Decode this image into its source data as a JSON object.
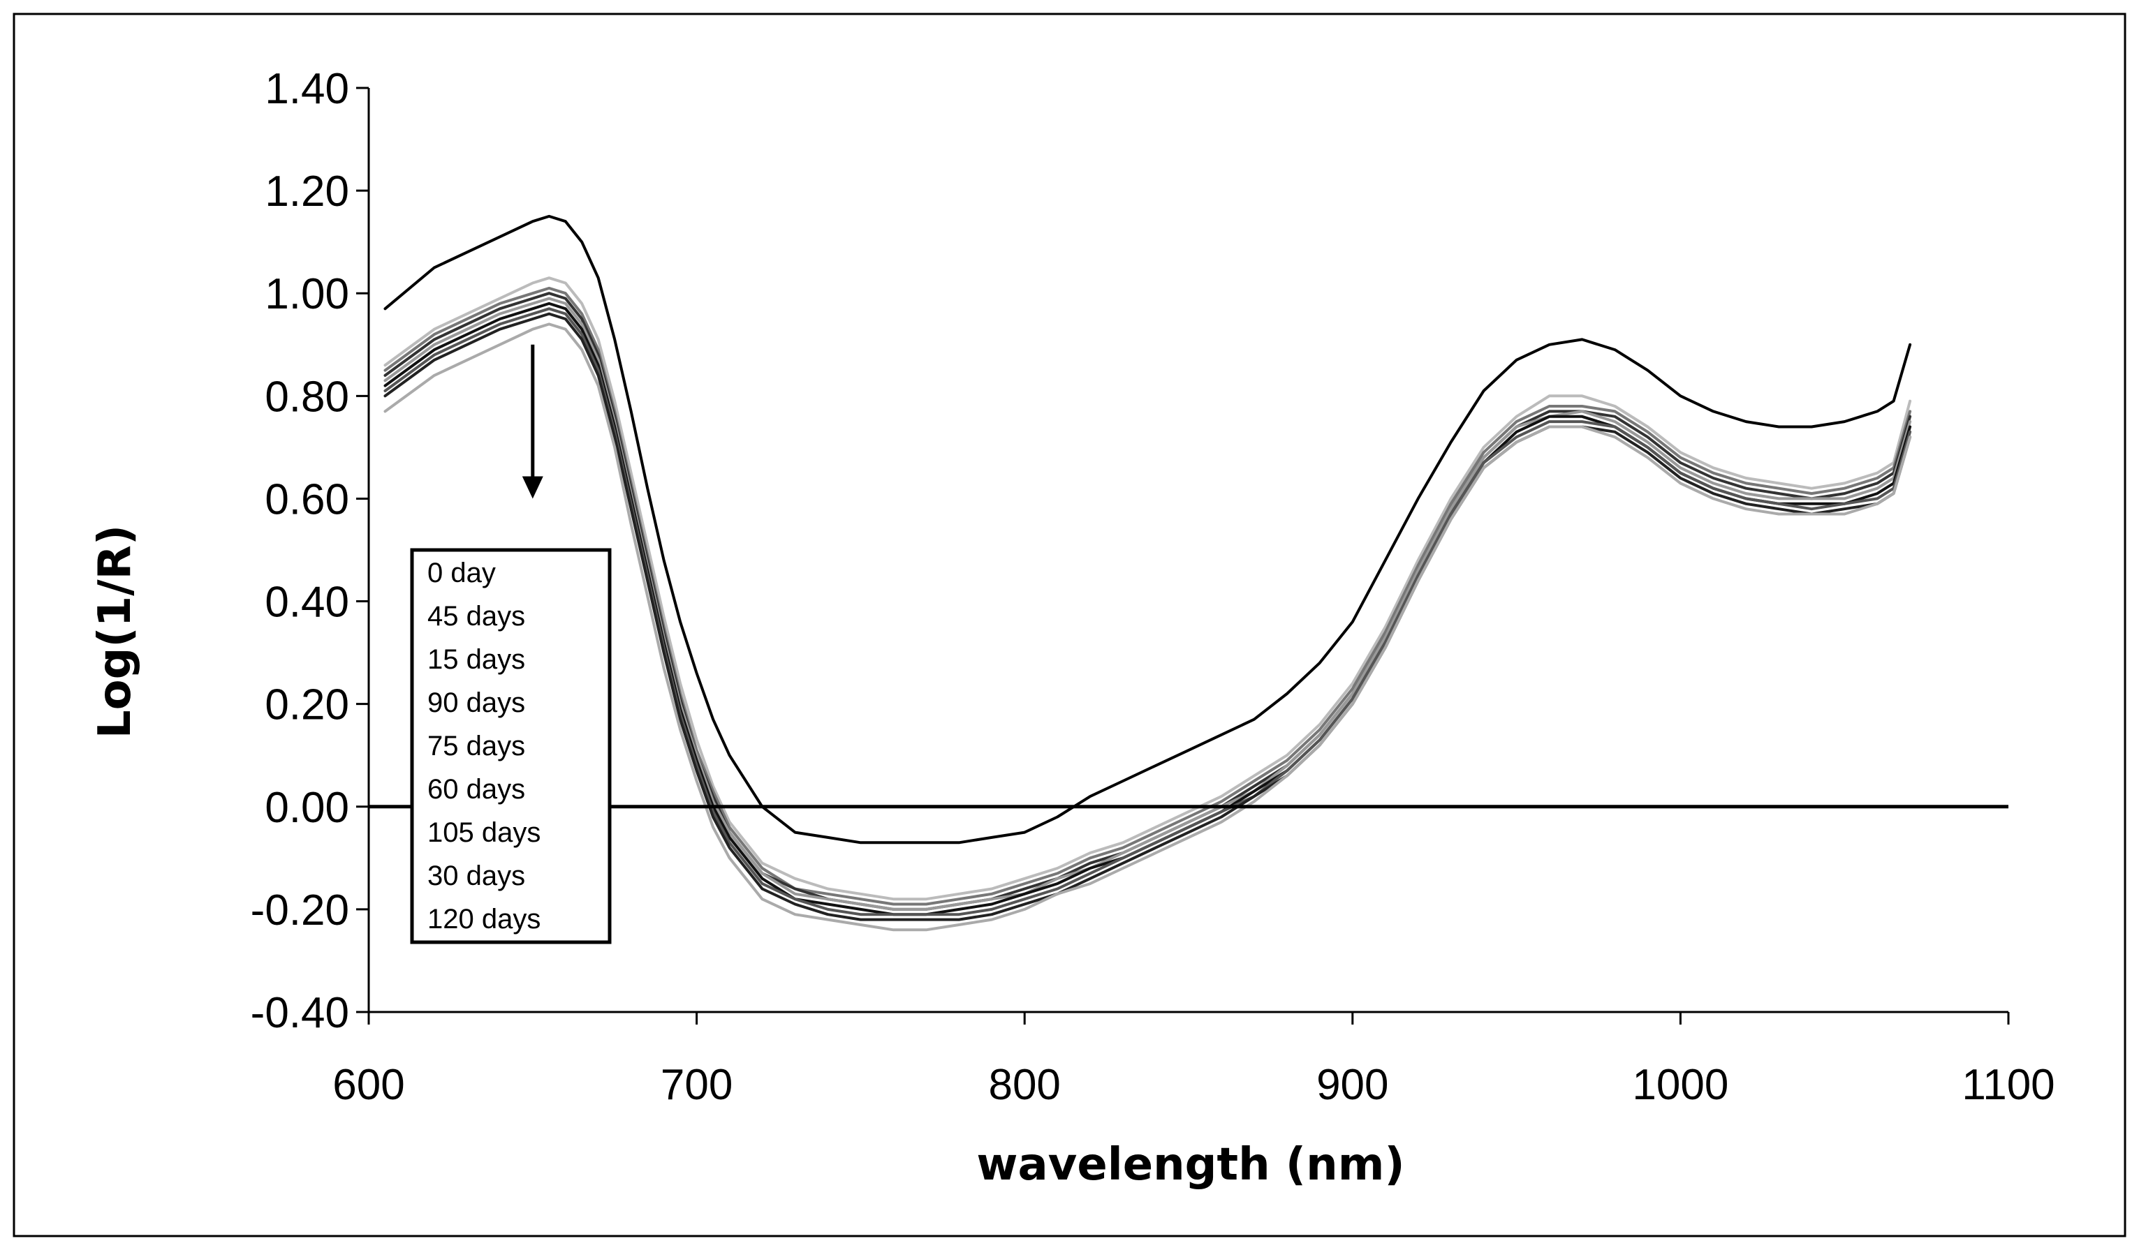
{
  "chart_data": {
    "type": "line",
    "title": "",
    "xlabel": "wavelength (nm)",
    "ylabel": "Log(1/R)",
    "xlim": [
      600,
      1100
    ],
    "ylim": [
      -0.4,
      1.4
    ],
    "xticks": [
      600,
      700,
      800,
      900,
      1000,
      1100
    ],
    "xtick_labels": [
      "600",
      "700",
      "800",
      "900",
      "1000",
      "1100"
    ],
    "yticks": [
      -0.4,
      -0.2,
      0.0,
      0.2,
      0.4,
      0.6,
      0.8,
      1.0,
      1.2,
      1.4
    ],
    "ytick_labels": [
      "-0.40",
      "-0.20",
      "0.00",
      "0.20",
      "0.40",
      "0.60",
      "0.80",
      "1.00",
      "1.20",
      "1.40"
    ],
    "grid": false,
    "zero_line": 0.0,
    "legend_placement": "left",
    "annotation": "arrow pointing down at 650 nm, from 0.90 to 0.60",
    "x": [
      605,
      620,
      640,
      650,
      655,
      660,
      665,
      670,
      675,
      680,
      685,
      690,
      695,
      700,
      705,
      710,
      720,
      730,
      740,
      750,
      760,
      770,
      780,
      790,
      800,
      810,
      820,
      830,
      840,
      850,
      860,
      870,
      880,
      890,
      900,
      910,
      920,
      930,
      940,
      950,
      960,
      970,
      980,
      990,
      1000,
      1010,
      1020,
      1030,
      1040,
      1050,
      1060,
      1065,
      1070
    ],
    "series": [
      {
        "name": "0 day",
        "color": "#000000",
        "width": 4,
        "values": [
          0.97,
          1.05,
          1.11,
          1.14,
          1.15,
          1.14,
          1.1,
          1.03,
          0.91,
          0.77,
          0.62,
          0.48,
          0.36,
          0.26,
          0.17,
          0.1,
          0.0,
          -0.05,
          -0.06,
          -0.07,
          -0.07,
          -0.07,
          -0.07,
          -0.06,
          -0.05,
          -0.02,
          0.02,
          0.05,
          0.08,
          0.11,
          0.14,
          0.17,
          0.22,
          0.28,
          0.36,
          0.48,
          0.6,
          0.71,
          0.81,
          0.87,
          0.9,
          0.91,
          0.89,
          0.85,
          0.8,
          0.77,
          0.75,
          0.74,
          0.74,
          0.75,
          0.77,
          0.79,
          0.9
        ]
      },
      {
        "name": "45 days",
        "color": "#bbbbbb",
        "width": 4,
        "values": [
          0.86,
          0.93,
          0.99,
          1.02,
          1.03,
          1.02,
          0.98,
          0.91,
          0.79,
          0.65,
          0.51,
          0.37,
          0.24,
          0.13,
          0.04,
          -0.03,
          -0.11,
          -0.14,
          -0.16,
          -0.17,
          -0.18,
          -0.18,
          -0.17,
          -0.16,
          -0.14,
          -0.12,
          -0.09,
          -0.07,
          -0.04,
          -0.01,
          0.02,
          0.06,
          0.1,
          0.16,
          0.24,
          0.35,
          0.48,
          0.6,
          0.7,
          0.76,
          0.8,
          0.8,
          0.78,
          0.74,
          0.69,
          0.66,
          0.64,
          0.63,
          0.62,
          0.63,
          0.65,
          0.67,
          0.79
        ]
      },
      {
        "name": "15 days",
        "color": "#777777",
        "width": 4,
        "values": [
          0.85,
          0.92,
          0.98,
          1.0,
          1.01,
          1.0,
          0.96,
          0.89,
          0.77,
          0.63,
          0.49,
          0.35,
          0.22,
          0.11,
          0.03,
          -0.04,
          -0.12,
          -0.16,
          -0.17,
          -0.18,
          -0.19,
          -0.19,
          -0.18,
          -0.17,
          -0.15,
          -0.13,
          -0.1,
          -0.08,
          -0.05,
          -0.02,
          0.01,
          0.05,
          0.09,
          0.15,
          0.23,
          0.34,
          0.47,
          0.59,
          0.69,
          0.75,
          0.78,
          0.78,
          0.77,
          0.73,
          0.68,
          0.65,
          0.63,
          0.62,
          0.61,
          0.62,
          0.64,
          0.66,
          0.77
        ]
      },
      {
        "name": "90 days",
        "color": "#333333",
        "width": 4,
        "values": [
          0.84,
          0.91,
          0.97,
          0.99,
          1.0,
          0.99,
          0.95,
          0.88,
          0.76,
          0.62,
          0.48,
          0.34,
          0.21,
          0.1,
          0.02,
          -0.05,
          -0.13,
          -0.16,
          -0.18,
          -0.19,
          -0.2,
          -0.2,
          -0.19,
          -0.18,
          -0.16,
          -0.14,
          -0.11,
          -0.09,
          -0.06,
          -0.03,
          0.0,
          0.04,
          0.08,
          0.14,
          0.22,
          0.33,
          0.46,
          0.58,
          0.68,
          0.74,
          0.77,
          0.77,
          0.76,
          0.72,
          0.67,
          0.64,
          0.62,
          0.61,
          0.6,
          0.61,
          0.63,
          0.65,
          0.76
        ]
      },
      {
        "name": "75 days",
        "color": "#999999",
        "width": 4,
        "values": [
          0.83,
          0.9,
          0.96,
          0.98,
          0.99,
          0.98,
          0.94,
          0.87,
          0.75,
          0.61,
          0.47,
          0.33,
          0.2,
          0.1,
          0.01,
          -0.05,
          -0.13,
          -0.17,
          -0.18,
          -0.19,
          -0.2,
          -0.2,
          -0.19,
          -0.18,
          -0.17,
          -0.14,
          -0.12,
          -0.09,
          -0.06,
          -0.03,
          0.0,
          0.03,
          0.08,
          0.14,
          0.22,
          0.33,
          0.46,
          0.58,
          0.68,
          0.74,
          0.76,
          0.77,
          0.75,
          0.71,
          0.66,
          0.63,
          0.61,
          0.6,
          0.6,
          0.6,
          0.62,
          0.64,
          0.75
        ]
      },
      {
        "name": "60 days",
        "color": "#111111",
        "width": 4,
        "values": [
          0.82,
          0.89,
          0.95,
          0.97,
          0.98,
          0.97,
          0.93,
          0.86,
          0.74,
          0.6,
          0.46,
          0.32,
          0.19,
          0.09,
          0.0,
          -0.06,
          -0.14,
          -0.18,
          -0.19,
          -0.2,
          -0.21,
          -0.21,
          -0.2,
          -0.19,
          -0.17,
          -0.15,
          -0.12,
          -0.1,
          -0.07,
          -0.04,
          -0.01,
          0.03,
          0.07,
          0.13,
          0.21,
          0.32,
          0.45,
          0.57,
          0.67,
          0.73,
          0.76,
          0.76,
          0.74,
          0.7,
          0.65,
          0.62,
          0.6,
          0.59,
          0.59,
          0.59,
          0.61,
          0.63,
          0.74
        ]
      },
      {
        "name": "105 days",
        "color": "#555555",
        "width": 4,
        "values": [
          0.81,
          0.88,
          0.94,
          0.96,
          0.97,
          0.96,
          0.92,
          0.85,
          0.73,
          0.59,
          0.45,
          0.31,
          0.18,
          0.08,
          -0.01,
          -0.07,
          -0.15,
          -0.18,
          -0.2,
          -0.21,
          -0.21,
          -0.21,
          -0.21,
          -0.2,
          -0.18,
          -0.16,
          -0.13,
          -0.1,
          -0.07,
          -0.04,
          -0.01,
          0.02,
          0.07,
          0.13,
          0.21,
          0.32,
          0.45,
          0.57,
          0.67,
          0.72,
          0.75,
          0.75,
          0.74,
          0.7,
          0.65,
          0.62,
          0.6,
          0.59,
          0.58,
          0.59,
          0.6,
          0.62,
          0.73
        ]
      },
      {
        "name": "30 days",
        "color": "#222222",
        "width": 4,
        "values": [
          0.8,
          0.87,
          0.93,
          0.95,
          0.96,
          0.95,
          0.91,
          0.84,
          0.72,
          0.58,
          0.44,
          0.3,
          0.17,
          0.07,
          -0.02,
          -0.08,
          -0.16,
          -0.19,
          -0.21,
          -0.22,
          -0.22,
          -0.22,
          -0.22,
          -0.21,
          -0.19,
          -0.17,
          -0.14,
          -0.11,
          -0.08,
          -0.05,
          -0.02,
          0.02,
          0.06,
          0.12,
          0.2,
          0.31,
          0.44,
          0.56,
          0.66,
          0.71,
          0.74,
          0.74,
          0.73,
          0.69,
          0.64,
          0.61,
          0.59,
          0.58,
          0.57,
          0.58,
          0.59,
          0.61,
          0.72
        ]
      },
      {
        "name": "120 days",
        "color": "#aaaaaa",
        "width": 4,
        "values": [
          0.77,
          0.84,
          0.9,
          0.93,
          0.94,
          0.93,
          0.89,
          0.82,
          0.7,
          0.55,
          0.41,
          0.27,
          0.15,
          0.05,
          -0.04,
          -0.1,
          -0.18,
          -0.21,
          -0.22,
          -0.23,
          -0.24,
          -0.24,
          -0.23,
          -0.22,
          -0.2,
          -0.17,
          -0.15,
          -0.12,
          -0.09,
          -0.06,
          -0.03,
          0.01,
          0.06,
          0.12,
          0.2,
          0.31,
          0.44,
          0.56,
          0.66,
          0.71,
          0.74,
          0.74,
          0.72,
          0.68,
          0.63,
          0.6,
          0.58,
          0.57,
          0.57,
          0.57,
          0.59,
          0.61,
          0.72
        ]
      }
    ]
  }
}
